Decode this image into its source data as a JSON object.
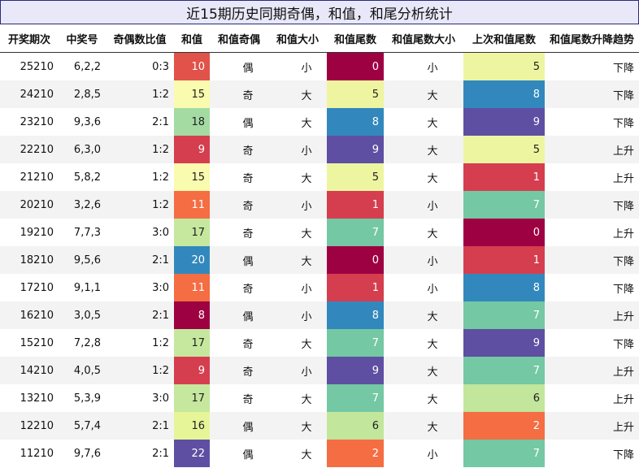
{
  "title": "近15期历史同期奇偶，和值，和尾分析统计",
  "headers": [
    "开奖期次",
    "中奖号",
    "奇偶数比值",
    "和值",
    "和值奇偶",
    "和值大小",
    "和值尾数",
    "和值尾数大小",
    "上次和值尾数",
    "和值尾数升降趋势"
  ],
  "rows": [
    {
      "period": "25210",
      "numbers": "6,2,2",
      "ratio": "0:3",
      "sum": "10",
      "parity": "偶",
      "size": "小",
      "tail": "0",
      "tail_size": "小",
      "prev_tail": "5",
      "trend": "下降"
    },
    {
      "period": "24210",
      "numbers": "2,8,5",
      "ratio": "1:2",
      "sum": "15",
      "parity": "奇",
      "size": "大",
      "tail": "5",
      "tail_size": "大",
      "prev_tail": "8",
      "trend": "下降"
    },
    {
      "period": "23210",
      "numbers": "9,3,6",
      "ratio": "2:1",
      "sum": "18",
      "parity": "偶",
      "size": "大",
      "tail": "8",
      "tail_size": "大",
      "prev_tail": "9",
      "trend": "下降"
    },
    {
      "period": "22210",
      "numbers": "6,3,0",
      "ratio": "1:2",
      "sum": "9",
      "parity": "奇",
      "size": "小",
      "tail": "9",
      "tail_size": "大",
      "prev_tail": "5",
      "trend": "上升"
    },
    {
      "period": "21210",
      "numbers": "5,8,2",
      "ratio": "1:2",
      "sum": "15",
      "parity": "奇",
      "size": "大",
      "tail": "5",
      "tail_size": "大",
      "prev_tail": "1",
      "trend": "上升"
    },
    {
      "period": "20210",
      "numbers": "3,2,6",
      "ratio": "1:2",
      "sum": "11",
      "parity": "奇",
      "size": "小",
      "tail": "1",
      "tail_size": "小",
      "prev_tail": "7",
      "trend": "下降"
    },
    {
      "period": "19210",
      "numbers": "7,7,3",
      "ratio": "3:0",
      "sum": "17",
      "parity": "奇",
      "size": "大",
      "tail": "7",
      "tail_size": "大",
      "prev_tail": "0",
      "trend": "上升"
    },
    {
      "period": "18210",
      "numbers": "9,5,6",
      "ratio": "2:1",
      "sum": "20",
      "parity": "偶",
      "size": "大",
      "tail": "0",
      "tail_size": "小",
      "prev_tail": "1",
      "trend": "下降"
    },
    {
      "period": "17210",
      "numbers": "9,1,1",
      "ratio": "3:0",
      "sum": "11",
      "parity": "奇",
      "size": "小",
      "tail": "1",
      "tail_size": "小",
      "prev_tail": "8",
      "trend": "下降"
    },
    {
      "period": "16210",
      "numbers": "3,0,5",
      "ratio": "2:1",
      "sum": "8",
      "parity": "偶",
      "size": "小",
      "tail": "8",
      "tail_size": "大",
      "prev_tail": "7",
      "trend": "上升"
    },
    {
      "period": "15210",
      "numbers": "7,2,8",
      "ratio": "1:2",
      "sum": "17",
      "parity": "奇",
      "size": "大",
      "tail": "7",
      "tail_size": "大",
      "prev_tail": "9",
      "trend": "下降"
    },
    {
      "period": "14210",
      "numbers": "4,0,5",
      "ratio": "1:2",
      "sum": "9",
      "parity": "奇",
      "size": "小",
      "tail": "9",
      "tail_size": "大",
      "prev_tail": "7",
      "trend": "上升"
    },
    {
      "period": "13210",
      "numbers": "5,3,9",
      "ratio": "3:0",
      "sum": "17",
      "parity": "奇",
      "size": "大",
      "tail": "7",
      "tail_size": "大",
      "prev_tail": "6",
      "trend": "上升"
    },
    {
      "period": "12210",
      "numbers": "5,7,4",
      "ratio": "2:1",
      "sum": "16",
      "parity": "偶",
      "size": "大",
      "tail": "6",
      "tail_size": "大",
      "prev_tail": "2",
      "trend": "上升"
    },
    {
      "period": "11210",
      "numbers": "9,7,6",
      "ratio": "2:1",
      "sum": "22",
      "parity": "偶",
      "size": "大",
      "tail": "2",
      "tail_size": "小",
      "prev_tail": "7",
      "trend": "下降"
    }
  ],
  "colors": {
    "sum": {
      "8": "#9e0142",
      "9": "#d53e4f",
      "10": "#e0524a",
      "11": "#f46d43",
      "15": "#f9fbae",
      "16": "#e6f598",
      "17": "#c5e89e",
      "18": "#a3dba3",
      "20": "#3288bd",
      "22": "#5e4fa2"
    },
    "tail": {
      "0": "#9e0142",
      "1": "#d53e4f",
      "2": "#f46d43",
      "5": "#eef5a0",
      "6": "#c2e69b",
      "7": "#74c8a4",
      "8": "#3288bd",
      "9": "#5e4fa2"
    },
    "light_text_values": [
      "5",
      "6",
      "15",
      "16",
      "17",
      "18"
    ]
  }
}
